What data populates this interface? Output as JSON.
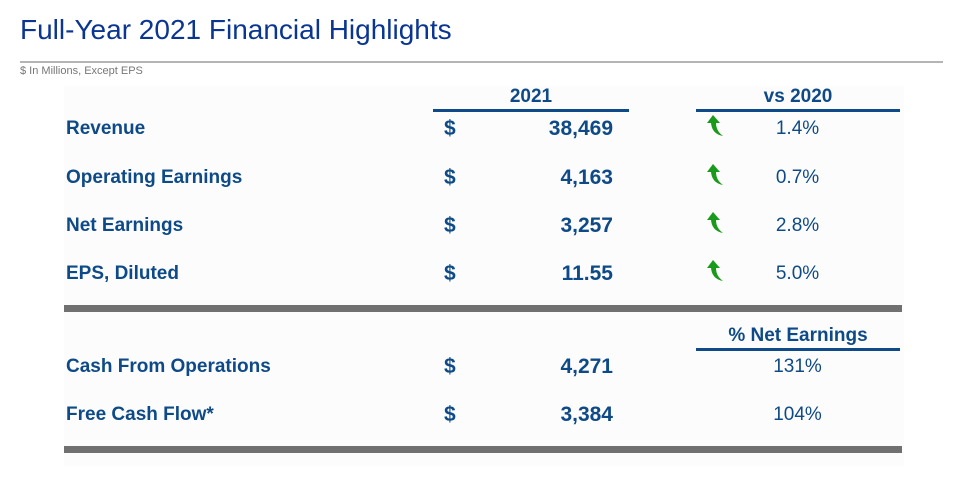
{
  "title": "Full-Year 2021 Financial Highlights",
  "subtitle": "$ In Millions, Except EPS",
  "headers": {
    "year": "2021",
    "vs": "vs 2020",
    "pct_net": "% Net Earnings"
  },
  "rows": [
    {
      "label": "Revenue",
      "currency": "$",
      "value": "38,469",
      "change": "1.4%",
      "trend": "up-arrow-icon"
    },
    {
      "label": "Operating Earnings",
      "currency": "$",
      "value": "4,163",
      "change": "0.7%",
      "trend": "up-arrow-icon"
    },
    {
      "label": "Net Earnings",
      "currency": "$",
      "value": "3,257",
      "change": "2.8%",
      "trend": "up-arrow-icon"
    },
    {
      "label": "EPS, Diluted",
      "currency": "$",
      "value": "11.55",
      "change": "5.0%",
      "trend": "up-arrow-icon"
    }
  ],
  "cash_rows": [
    {
      "label": "Cash From Operations",
      "currency": "$",
      "value": "4,271",
      "pct": "131%"
    },
    {
      "label": "Free Cash Flow*",
      "currency": "$",
      "value": "3,384",
      "pct": "104%"
    }
  ],
  "colors": {
    "title": "#0a3591",
    "text": "#0e4a87",
    "arrow": "#1a9a1a",
    "bar": "#707070"
  }
}
